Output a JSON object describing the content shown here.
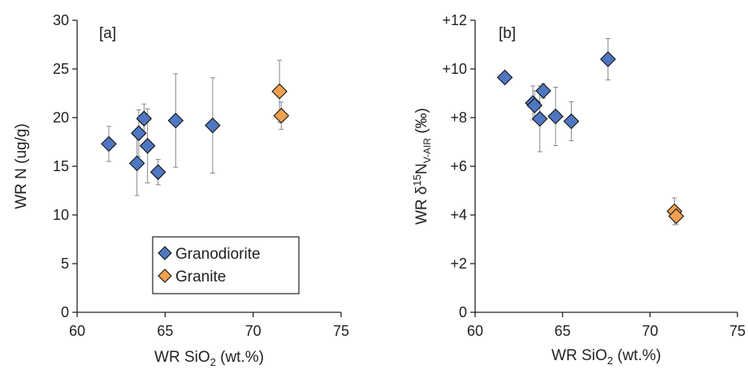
{
  "chart_data": [
    {
      "type": "scatter",
      "panel_label": "[a]",
      "xlabel": {
        "main": "WR SiO",
        "sub": "2",
        "suffix": " (wt.%)"
      },
      "ylabel": "WR N (ug/g)",
      "xlim": [
        60,
        75
      ],
      "ylim": [
        0,
        30
      ],
      "xticks": [
        60,
        65,
        70,
        75
      ],
      "xtick_labels": [
        "60",
        "65",
        "70",
        "75"
      ],
      "yticks": [
        0,
        5,
        10,
        15,
        20,
        25,
        30
      ],
      "ytick_labels": [
        "0",
        "5",
        "10",
        "15",
        "20",
        "25",
        "30"
      ],
      "grid": false,
      "legend": "bottom-center",
      "series": [
        {
          "name": "Granodiorite",
          "color": "#4f77c1",
          "points": [
            {
              "x": 61.8,
              "y": 17.3,
              "err": 1.8
            },
            {
              "x": 63.4,
              "y": 15.3,
              "err": 3.3
            },
            {
              "x": 63.5,
              "y": 18.4,
              "err": 2.4
            },
            {
              "x": 63.8,
              "y": 19.9,
              "err": 1.5
            },
            {
              "x": 64.0,
              "y": 17.1,
              "err": 3.8
            },
            {
              "x": 64.6,
              "y": 14.4,
              "err": 1.3
            },
            {
              "x": 65.6,
              "y": 19.7,
              "err": 4.8
            },
            {
              "x": 67.7,
              "y": 19.2,
              "err": 4.9
            }
          ]
        },
        {
          "name": "Granite",
          "color": "#f0a050",
          "points": [
            {
              "x": 71.5,
              "y": 22.7,
              "err": 3.2
            },
            {
              "x": 71.6,
              "y": 20.2,
              "err": 1.4
            }
          ]
        }
      ]
    },
    {
      "type": "scatter",
      "panel_label": "[b]",
      "xlabel": {
        "main": "WR SiO",
        "sub": "2",
        "suffix": " (wt.%)"
      },
      "ylabel": {
        "prefix": "WR δ",
        "sup": "15",
        "main": "N",
        "sub": "V-AIR",
        "suffix": " (‰)"
      },
      "xlim": [
        60,
        75
      ],
      "ylim": [
        0,
        12
      ],
      "xticks": [
        60,
        65,
        70,
        75
      ],
      "xtick_labels": [
        "60",
        "65",
        "70",
        "75"
      ],
      "yticks": [
        0,
        2,
        4,
        6,
        8,
        10,
        12
      ],
      "ytick_labels": [
        "0",
        "+2",
        "+4",
        "+6",
        "+8",
        "+10",
        "+12"
      ],
      "grid": false,
      "series": [
        {
          "name": "Granodiorite",
          "color": "#4f77c1",
          "points": [
            {
              "x": 61.7,
              "y": 9.65,
              "err": 0
            },
            {
              "x": 63.3,
              "y": 8.6,
              "err": 0.7
            },
            {
              "x": 63.4,
              "y": 8.5,
              "err": 0.6
            },
            {
              "x": 63.7,
              "y": 7.95,
              "err": 1.35
            },
            {
              "x": 63.9,
              "y": 9.1,
              "err": 0.3
            },
            {
              "x": 64.6,
              "y": 8.05,
              "err": 1.2
            },
            {
              "x": 65.5,
              "y": 7.85,
              "err": 0.8
            },
            {
              "x": 67.6,
              "y": 10.4,
              "err": 0.85
            }
          ]
        },
        {
          "name": "Granite",
          "color": "#f0a050",
          "points": [
            {
              "x": 71.4,
              "y": 4.15,
              "err": 0.55
            },
            {
              "x": 71.5,
              "y": 3.95,
              "err": 0.35
            }
          ]
        }
      ]
    }
  ]
}
